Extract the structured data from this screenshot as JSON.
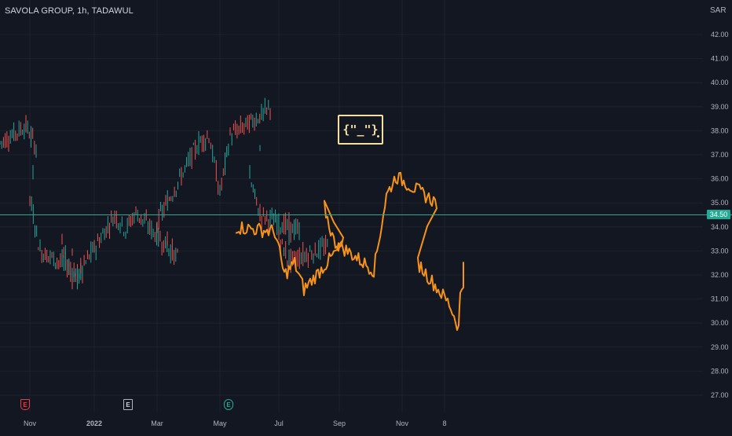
{
  "header": {
    "symbol_title": "SAVOLA GROUP, 1h, TADAWUL"
  },
  "price_axis": {
    "unit": "SAR",
    "ticks": [
      "42.00",
      "41.00",
      "40.00",
      "39.00",
      "38.00",
      "37.00",
      "36.00",
      "35.00",
      "34.00",
      "33.00",
      "32.00",
      "31.00",
      "30.00",
      "29.00",
      "28.00",
      "27.00"
    ],
    "current_price": "34.50"
  },
  "time_axis": {
    "ticks": [
      "Nov",
      "2022",
      "Mar",
      "May",
      "Jul",
      "Sep",
      "Nov",
      "8"
    ]
  },
  "events": [
    {
      "letter": "E",
      "kind": "red"
    },
    {
      "letter": "E",
      "kind": "gray"
    },
    {
      "letter": "E",
      "kind": "green"
    }
  ],
  "logo_text": "{\"_\"}",
  "colors": {
    "background": "#131722",
    "grid": "#1e222d",
    "up": "#26a69a",
    "down": "#ef5350",
    "projection": "#f7931a",
    "price_line": "#22ab94",
    "logo": "#f5dfa0"
  },
  "chart_data": {
    "type": "line",
    "title": "SAVOLA GROUP, 1h, TADAWUL",
    "ylabel": "SAR",
    "ylim": [
      26.6,
      43.1
    ],
    "grid": true,
    "x_ticks": [
      "Nov",
      "2022",
      "Mar",
      "May",
      "Jul",
      "Sep",
      "Nov",
      "8"
    ],
    "series": [
      {
        "style": "candles",
        "points": [
          [
            "Sep 2021",
            37.5
          ],
          [
            "Oct 2021",
            38.2
          ],
          [
            "Oct 2021",
            37.3
          ],
          [
            "Nov 2021",
            35.2
          ],
          [
            "Nov 2021",
            33.0
          ],
          [
            "Dec 2021",
            32.0
          ],
          [
            "Dec 2021",
            33.6
          ],
          [
            "Dec 2021",
            31.6
          ],
          [
            "Jan 2022",
            34.5
          ],
          [
            "Feb 2022",
            33.9
          ],
          [
            "Feb 2022",
            34.6
          ],
          [
            "Mar 2022",
            32.7
          ],
          [
            "Mar 2022",
            34.2
          ],
          [
            "Apr 2022",
            37.5
          ],
          [
            "Apr 2022",
            37.8
          ],
          [
            "May 2022",
            35.4
          ],
          [
            "May 2022",
            37.8
          ],
          [
            "Jun 2022",
            38.9
          ],
          [
            "Jun 2022",
            36.0
          ],
          [
            "Jun 2022",
            34.5
          ],
          [
            "Jul 2022",
            33.8
          ],
          [
            "Jul 2022",
            33.5
          ],
          [
            "Jul 2022",
            32.6
          ],
          [
            "Aug 2022",
            33.2
          ]
        ]
      },
      {
        "style": "projection",
        "points": [
          [
            "May 2022",
            34.0
          ],
          [
            "Jun 2022",
            33.8
          ],
          [
            "Jun 2022",
            32.0
          ],
          [
            "Jul 2022",
            32.5
          ],
          [
            "Jul 2022",
            31.4
          ],
          [
            "Aug 2022",
            33.3
          ],
          [
            "Aug 2022",
            34.8
          ],
          [
            "Aug 2022",
            33.4
          ],
          [
            "Sep 2022",
            32.2
          ],
          [
            "Oct 2022",
            35.3
          ],
          [
            "Oct 2022",
            36.1
          ],
          [
            "Nov 2022",
            35.0
          ],
          [
            "Nov 2022",
            32.5
          ],
          [
            "Dec 2022",
            30.8
          ],
          [
            "Dec 2022",
            29.8
          ],
          [
            "Jan 2023",
            31.3
          ],
          [
            "Jan 2023",
            32.7
          ]
        ]
      }
    ],
    "current_price": 34.5
  }
}
